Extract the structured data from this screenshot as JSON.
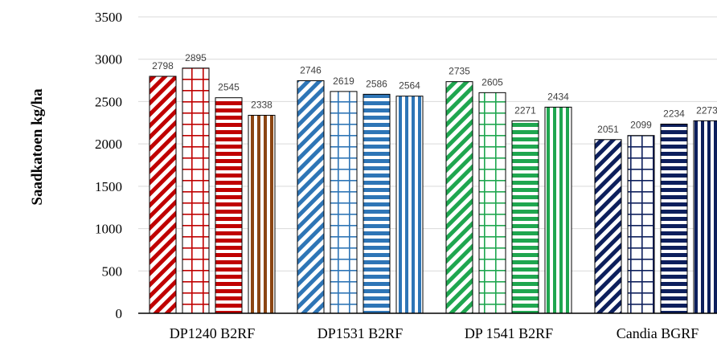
{
  "chart_data": {
    "type": "bar",
    "title": "",
    "xlabel": "",
    "ylabel": "Saadkatoen  kg/ha",
    "ylim": [
      0,
      3500
    ],
    "yticks": [
      0,
      500,
      1000,
      1500,
      2000,
      2500,
      3000,
      3500
    ],
    "grid": true,
    "legend": "none",
    "categories": [
      "DP1240 B2RF",
      "DP1531 B2RF",
      "DP 1541 B2RF",
      "Candia BGRF"
    ],
    "series": [
      {
        "values": [
          2798,
          2746,
          2735,
          2051
        ],
        "pattern": "diagonal"
      },
      {
        "values": [
          2895,
          2619,
          2605,
          2099
        ],
        "pattern": "grid"
      },
      {
        "values": [
          2545,
          2586,
          2271,
          2234
        ],
        "pattern": "horizontal"
      },
      {
        "values": [
          2338,
          2564,
          2434,
          2273
        ],
        "pattern": "vertical"
      }
    ],
    "group_colors": [
      "#c00000",
      "#2e75b6",
      "#1fa64f",
      "#0d1f5c"
    ],
    "series4_group1_color": "#8b4513"
  }
}
